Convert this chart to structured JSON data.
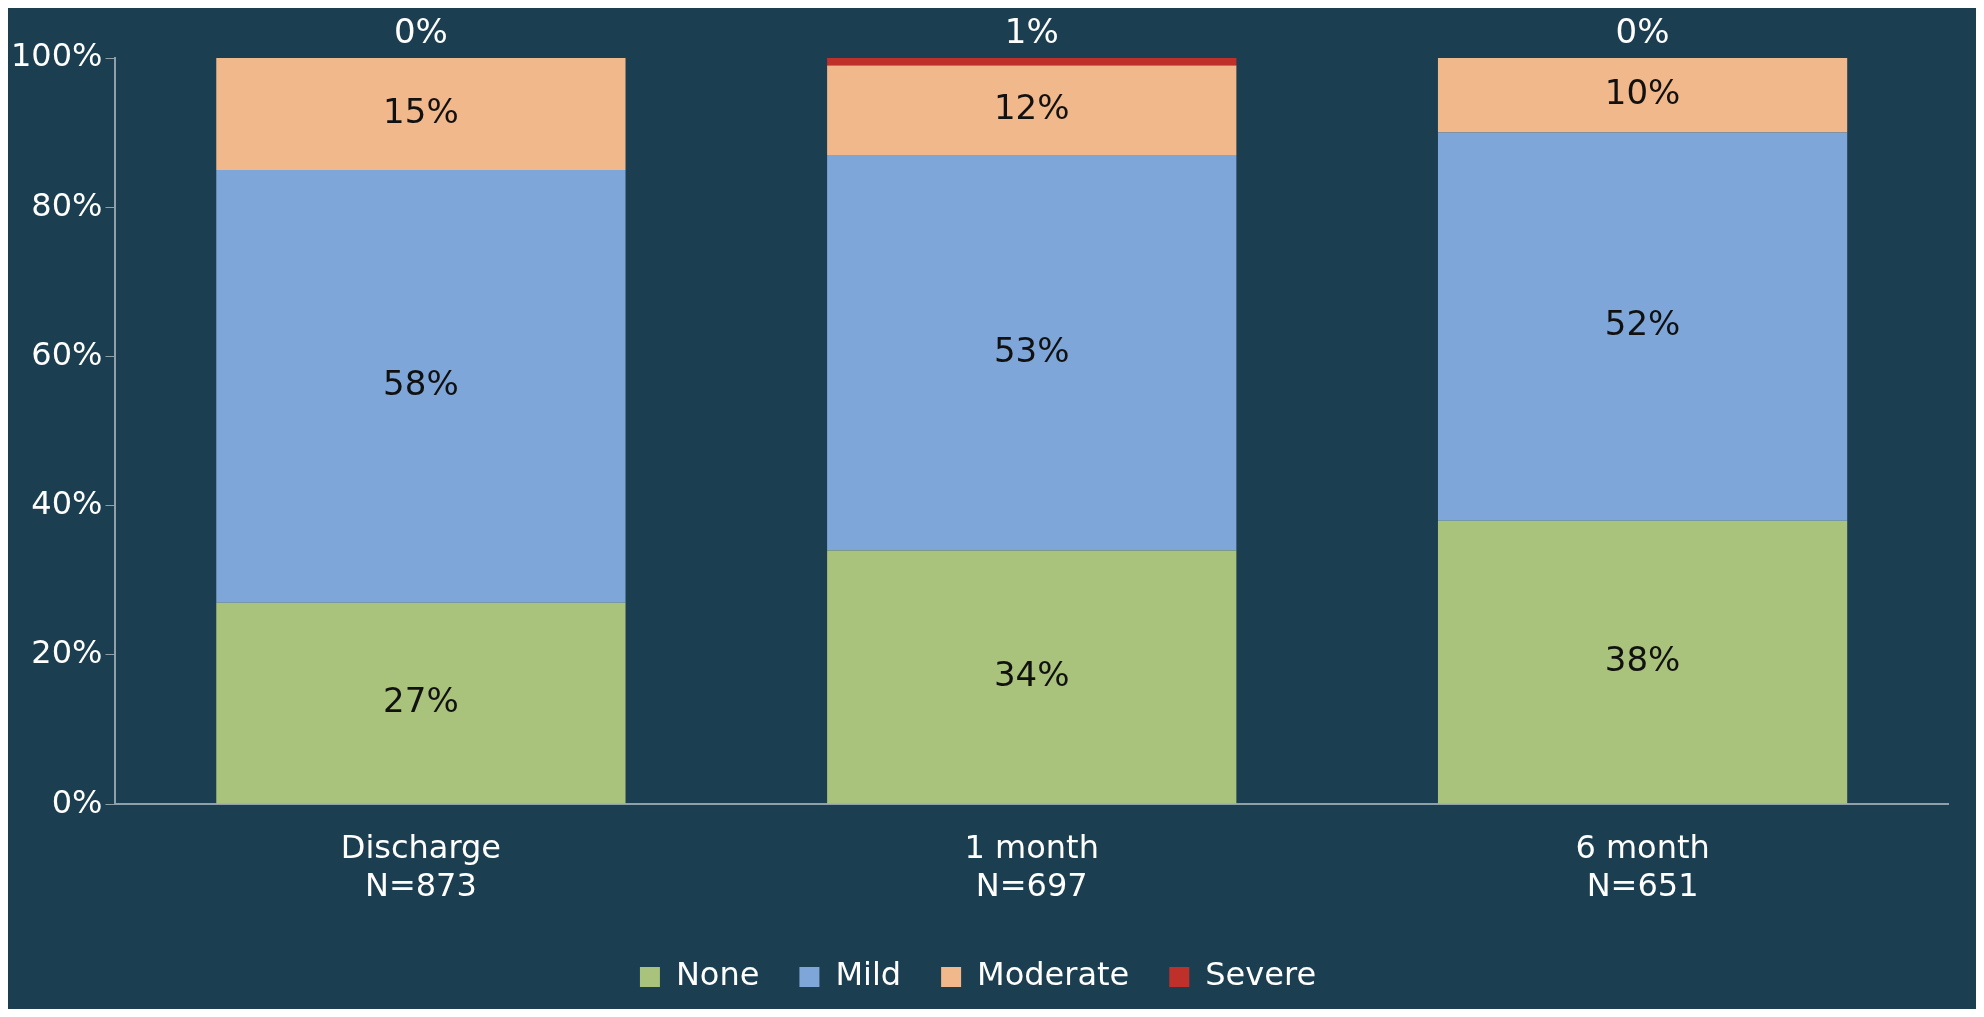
{
  "chart_data": {
    "type": "bar",
    "stacked": true,
    "categories": [
      "Discharge\nN=873",
      "1 month\nN=697",
      "6 month\nN=651"
    ],
    "series": [
      {
        "name": "None",
        "color": "#a9c27c",
        "values": [
          27,
          34,
          38
        ],
        "value_labels": [
          "27%",
          "34%",
          "38%"
        ]
      },
      {
        "name": "Mild",
        "color": "#7ea6d9",
        "values": [
          58,
          53,
          52
        ],
        "value_labels": [
          "58%",
          "53%",
          "52%"
        ]
      },
      {
        "name": "Moderate",
        "color": "#f1b88c",
        "values": [
          15,
          12,
          10
        ],
        "value_labels": [
          "15%",
          "12%",
          "10%"
        ]
      },
      {
        "name": "Severe",
        "color": "#c0302b",
        "values": [
          0,
          1,
          0
        ],
        "value_labels": [
          "0%",
          "1%",
          "0%"
        ]
      }
    ],
    "ylim": [
      0,
      100
    ],
    "yticks": [
      {
        "value": 0,
        "label": "0%"
      },
      {
        "value": 20,
        "label": "20%"
      },
      {
        "value": 40,
        "label": "40%"
      },
      {
        "value": 60,
        "label": "60%"
      },
      {
        "value": 80,
        "label": "80%"
      },
      {
        "value": 100,
        "label": "100%"
      }
    ],
    "grid": false,
    "legend": "bottom"
  }
}
